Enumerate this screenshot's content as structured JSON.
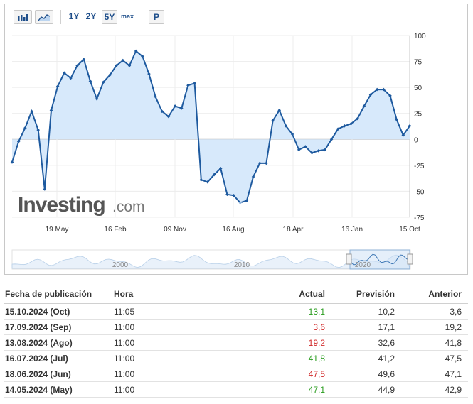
{
  "toolbar": {
    "icons": [
      "bar-chart-icon",
      "area-chart-icon"
    ],
    "ranges": [
      "1Y",
      "2Y",
      "5Y",
      "max"
    ],
    "selected_range": "5Y",
    "print_label": "P"
  },
  "watermark": {
    "brand": "Investing",
    "suffix": ".com"
  },
  "navigator": {
    "labels": [
      "2000",
      "2010",
      "2020"
    ]
  },
  "chart_data": {
    "type": "area",
    "x_tick_labels": [
      "19 May",
      "16 Feb",
      "09 Nov",
      "16 Aug",
      "18 Apr",
      "16 Jan",
      "15 Oct"
    ],
    "y_ticks": [
      100,
      75,
      50,
      25,
      0,
      -25,
      -50,
      -75
    ],
    "ylim": [
      -75,
      100
    ],
    "values": [
      -22,
      -2,
      11,
      27,
      9,
      -48,
      28,
      51,
      64,
      59,
      71,
      77,
      56,
      39,
      55,
      62,
      71,
      76,
      71,
      85,
      80,
      63,
      41,
      27,
      22,
      32,
      30,
      52,
      54,
      -39,
      -41,
      -34,
      -28,
      -53,
      -54,
      -61,
      -59,
      -36,
      -23,
      -23,
      18,
      28,
      13,
      5,
      -10,
      -7,
      -13,
      -11,
      -10,
      0,
      10,
      13,
      15,
      20,
      32,
      43,
      48,
      48,
      42,
      19,
      4,
      13
    ],
    "colors": {
      "line": "#1e5a9f",
      "fill": "#d7e9fb",
      "marker": "#1e5a9f"
    },
    "grid": true
  },
  "table": {
    "headers": {
      "date": "Fecha de publicación",
      "time": "Hora",
      "actual": "Actual",
      "forecast": "Previsión",
      "previous": "Anterior"
    },
    "rows": [
      {
        "date": "15.10.2024 (Oct)",
        "time": "11:05",
        "actual": "13,1",
        "forecast": "10,2",
        "previous": "3,6",
        "actual_color": "#2a9d1f"
      },
      {
        "date": "17.09.2024 (Sep)",
        "time": "11:00",
        "actual": "3,6",
        "forecast": "17,1",
        "previous": "19,2",
        "actual_color": "#d12b2b"
      },
      {
        "date": "13.08.2024 (Ago)",
        "time": "11:00",
        "actual": "19,2",
        "forecast": "32,6",
        "previous": "41,8",
        "actual_color": "#d12b2b"
      },
      {
        "date": "16.07.2024 (Jul)",
        "time": "11:00",
        "actual": "41,8",
        "forecast": "41,2",
        "previous": "47,5",
        "actual_color": "#2a9d1f"
      },
      {
        "date": "18.06.2024 (Jun)",
        "time": "11:00",
        "actual": "47,5",
        "forecast": "49,6",
        "previous": "47,1",
        "actual_color": "#d12b2b"
      },
      {
        "date": "14.05.2024 (May)",
        "time": "11:00",
        "actual": "47,1",
        "forecast": "44,9",
        "previous": "42,9",
        "actual_color": "#2a9d1f"
      }
    ]
  }
}
